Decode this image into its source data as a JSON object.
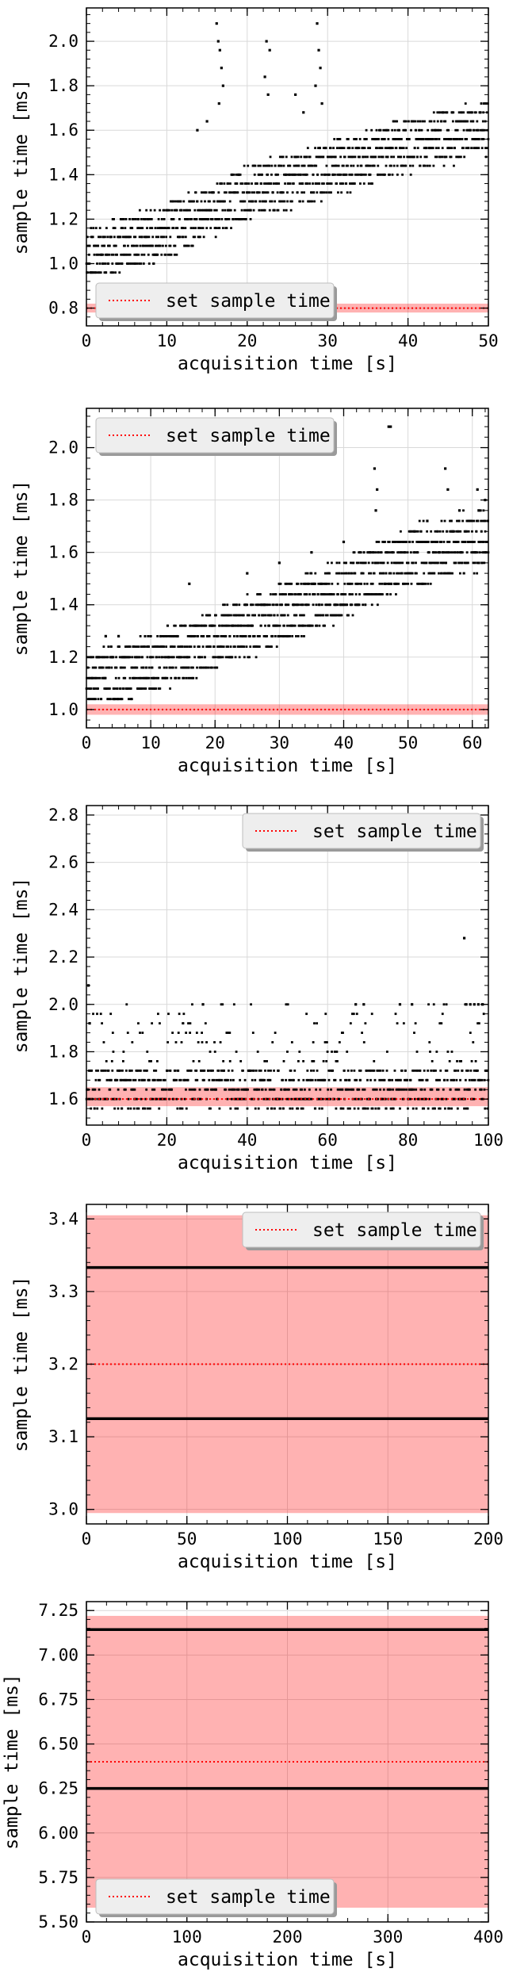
{
  "colors": {
    "band_fill": "#ff0000",
    "band_opacity": 0.3,
    "setpoint_line": "#ff0000",
    "points": "#000000",
    "grid": "#d9d9d9",
    "legend_bg": "#eeeeee"
  },
  "legend_label": "set sample time",
  "chart_data": [
    {
      "type": "scatter",
      "title": "",
      "xlabel": "acquisition time [s]",
      "ylabel": "sample time [ms]",
      "xlim": [
        0,
        50
      ],
      "ylim": [
        0.72,
        2.15
      ],
      "xticks": [
        0,
        10,
        20,
        30,
        40,
        50
      ],
      "yticks": [
        0.8,
        1.0,
        1.2,
        1.4,
        1.6,
        1.8,
        2.0
      ],
      "ytick_labels": [
        "0.8",
        "1.0",
        "1.2",
        "1.4",
        "1.6",
        "1.8",
        "2.0"
      ],
      "grid": true,
      "legend": "lower-left",
      "setpoint": 0.8,
      "band": [
        0.78,
        0.82
      ],
      "trend_points": [
        [
          0,
          1.04
        ],
        [
          10,
          1.14
        ],
        [
          20,
          1.32
        ],
        [
          30,
          1.42
        ],
        [
          40,
          1.53
        ],
        [
          50,
          1.61
        ]
      ],
      "sample_levels": [
        0.96,
        1.0,
        1.04,
        1.08,
        1.12,
        1.16,
        1.2,
        1.24,
        1.28,
        1.32,
        1.36,
        1.4,
        1.44,
        1.48,
        1.52,
        1.56,
        1.6,
        1.64,
        1.68,
        1.72
      ],
      "outliers": [
        [
          16.2,
          2.08
        ],
        [
          16.4,
          2.0
        ],
        [
          16.6,
          1.96
        ],
        [
          16.8,
          1.88
        ],
        [
          17.0,
          1.8
        ],
        [
          16.5,
          1.72
        ],
        [
          22.4,
          2.0
        ],
        [
          22.8,
          1.96
        ],
        [
          22.2,
          1.84
        ],
        [
          22.6,
          1.76
        ],
        [
          28.7,
          2.08
        ],
        [
          28.9,
          1.96
        ],
        [
          29.1,
          1.88
        ],
        [
          28.5,
          1.8
        ],
        [
          29.3,
          1.72
        ],
        [
          13.8,
          1.6
        ],
        [
          15.0,
          1.64
        ],
        [
          26.0,
          1.76
        ],
        [
          27.0,
          1.68
        ]
      ],
      "n_points": 1250,
      "jitter": 0.12,
      "seed": 11
    },
    {
      "type": "scatter",
      "title": "",
      "xlabel": "acquisition time [s]",
      "ylabel": "sample time [ms]",
      "xlim": [
        0,
        62.5
      ],
      "ylim": [
        0.93,
        2.15
      ],
      "xticks": [
        0,
        10,
        20,
        30,
        40,
        50,
        60
      ],
      "yticks": [
        1.0,
        1.2,
        1.4,
        1.6,
        1.8,
        2.0
      ],
      "ytick_labels": [
        "1.0",
        "1.2",
        "1.4",
        "1.6",
        "1.8",
        "2.0"
      ],
      "grid": true,
      "legend": "top-left",
      "setpoint": 1.0,
      "band": [
        0.98,
        1.02
      ],
      "trend_points": [
        [
          0,
          1.1
        ],
        [
          10,
          1.18
        ],
        [
          20,
          1.27
        ],
        [
          30,
          1.36
        ],
        [
          40,
          1.46
        ],
        [
          50,
          1.58
        ],
        [
          62.5,
          1.66
        ]
      ],
      "sample_levels": [
        1.04,
        1.08,
        1.12,
        1.16,
        1.2,
        1.24,
        1.28,
        1.32,
        1.36,
        1.4,
        1.44,
        1.48,
        1.52,
        1.56,
        1.6,
        1.64,
        1.68,
        1.72,
        1.76,
        1.8,
        1.84
      ],
      "outliers": [
        [
          47.0,
          2.08
        ],
        [
          47.3,
          2.08
        ],
        [
          44.8,
          1.92
        ],
        [
          45.2,
          1.84
        ],
        [
          45.0,
          1.76
        ],
        [
          55.8,
          1.92
        ],
        [
          56.2,
          1.84
        ],
        [
          60.8,
          1.84
        ],
        [
          62.0,
          1.8
        ],
        [
          61.0,
          1.76
        ],
        [
          53.0,
          1.72
        ],
        [
          58.0,
          1.76
        ],
        [
          3.0,
          1.28
        ],
        [
          5.0,
          1.28
        ],
        [
          16.0,
          1.48
        ],
        [
          25.0,
          1.52
        ],
        [
          30.0,
          1.56
        ],
        [
          35.0,
          1.6
        ],
        [
          40.0,
          1.64
        ]
      ],
      "n_points": 1500,
      "jitter": 0.11,
      "seed": 23
    },
    {
      "type": "scatter",
      "title": "",
      "xlabel": "acquisition time [s]",
      "ylabel": "sample time [ms]",
      "xlim": [
        0,
        100
      ],
      "ylim": [
        1.49,
        2.84
      ],
      "xticks": [
        0,
        20,
        40,
        60,
        80,
        100
      ],
      "yticks": [
        1.6,
        1.8,
        2.0,
        2.2,
        2.4,
        2.6,
        2.8
      ],
      "ytick_labels": [
        "1.6",
        "1.8",
        "2.0",
        "2.2",
        "2.4",
        "2.6",
        "2.8"
      ],
      "grid": true,
      "legend": "top-right",
      "setpoint": 1.6,
      "band": [
        1.57,
        1.65
      ],
      "dense_levels": [
        1.6,
        1.64,
        1.68,
        1.72
      ],
      "sample_levels": [
        1.56,
        1.76,
        1.8,
        1.84,
        1.88,
        1.92,
        1.96,
        2.0
      ],
      "outliers": [
        [
          94.0,
          2.28
        ],
        [
          0.5,
          2.08
        ],
        [
          0.8,
          1.92
        ],
        [
          29.0,
          2.0
        ],
        [
          67.0,
          2.0
        ],
        [
          69.0,
          2.0
        ],
        [
          78.0,
          2.0
        ],
        [
          81.0,
          2.0
        ],
        [
          94.5,
          2.0
        ],
        [
          95.5,
          2.0
        ],
        [
          96.5,
          2.0
        ],
        [
          97.5,
          2.0
        ],
        [
          98.5,
          2.0
        ]
      ],
      "n_points": 900,
      "seed": 37
    },
    {
      "type": "line",
      "title": "",
      "xlabel": "acquisition time [s]",
      "ylabel": "sample time [ms]",
      "xlim": [
        0,
        200
      ],
      "ylim": [
        2.98,
        3.42
      ],
      "xticks": [
        0,
        50,
        100,
        150,
        200
      ],
      "yticks": [
        3.0,
        3.1,
        3.2,
        3.3,
        3.4
      ],
      "ytick_labels": [
        "3.0",
        "3.1",
        "3.2",
        "3.3",
        "3.4"
      ],
      "grid": true,
      "legend": "top-right",
      "setpoint": 3.2,
      "band": [
        2.995,
        3.405
      ],
      "levels": [
        3.333,
        3.125
      ]
    },
    {
      "type": "line",
      "title": "",
      "xlabel": "acquisition time [s]",
      "ylabel": "sample time [ms]",
      "xlim": [
        0,
        400
      ],
      "ylim": [
        5.5,
        7.3
      ],
      "xticks": [
        0,
        100,
        200,
        300,
        400
      ],
      "yticks": [
        5.5,
        5.75,
        6.0,
        6.25,
        6.5,
        6.75,
        7.0,
        7.25
      ],
      "ytick_labels": [
        "5.50",
        "5.75",
        "6.00",
        "6.25",
        "6.50",
        "6.75",
        "7.00",
        "7.25"
      ],
      "grid": true,
      "legend": "lower-left",
      "setpoint": 6.4,
      "band": [
        5.58,
        7.22
      ],
      "levels": [
        7.143,
        6.25
      ]
    }
  ]
}
